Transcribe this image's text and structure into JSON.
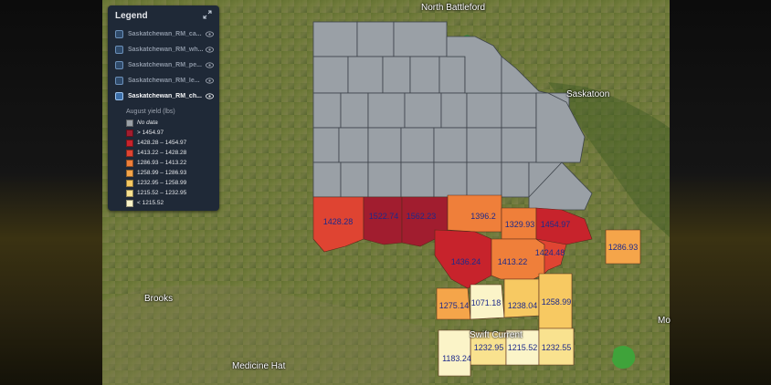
{
  "places": [
    {
      "name": "North Battleford"
    },
    {
      "name": "Saskatoon"
    },
    {
      "name": "Brooks"
    },
    {
      "name": "Medicine Hat"
    },
    {
      "name": "Swift Current"
    },
    {
      "name": "Mo"
    }
  ],
  "legend": {
    "title": "Legend",
    "layers": [
      {
        "name": "Saskatchewan_RM_ca...",
        "active": false
      },
      {
        "name": "Saskatchewan_RM_wh...",
        "active": false
      },
      {
        "name": "Saskatchewan_RM_pe...",
        "active": false
      },
      {
        "name": "Saskatchewan_RM_le...",
        "active": false
      },
      {
        "name": "Saskatchewan_RM_ch...",
        "active": true
      }
    ],
    "subtitle": "August yield (lbs)",
    "classes": [
      {
        "label": "No data",
        "color": "#9aa0a6"
      },
      {
        "label": "> 1454.97",
        "color": "#a11d2f"
      },
      {
        "label": "1428.28 – 1454.97",
        "color": "#c7232c"
      },
      {
        "label": "1413.22 – 1428.28",
        "color": "#df4432"
      },
      {
        "label": "1286.93 – 1413.22",
        "color": "#ef7f3a"
      },
      {
        "label": "1258.99 – 1286.93",
        "color": "#f5a54a"
      },
      {
        "label": "1232.95 – 1258.99",
        "color": "#f7c962"
      },
      {
        "label": "1215.52 – 1232.95",
        "color": "#f9e28f"
      },
      {
        "label": "< 1215.52",
        "color": "#fbf4c8"
      }
    ]
  },
  "region_values": [
    "1428.28",
    "1522.74",
    "1562.23",
    "1396.2",
    "1329.93",
    "1454.97",
    "1436.24",
    "1413.22",
    "1424.48",
    "1286.93",
    "1275.14",
    "1071.18",
    "1238.04",
    "1258.99",
    "1232.95",
    "1215.52",
    "1232.55",
    "1183.24"
  ]
}
